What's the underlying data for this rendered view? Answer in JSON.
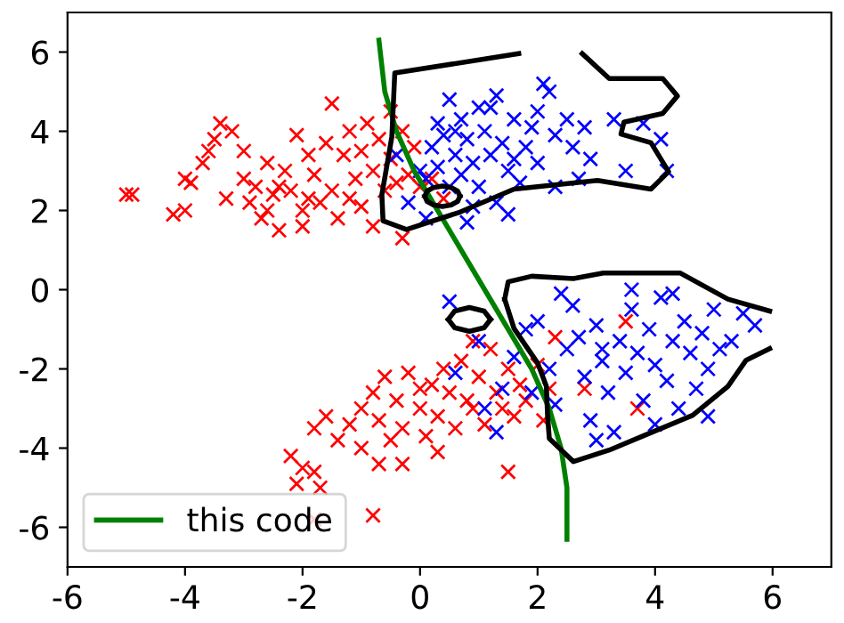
{
  "chart_data": {
    "type": "scatter",
    "xlim": [
      -6,
      7
    ],
    "ylim": [
      -7,
      7
    ],
    "xticks": [
      -6,
      -4,
      -2,
      0,
      2,
      4,
      6
    ],
    "yticks": [
      -6,
      -4,
      -2,
      0,
      2,
      4,
      6
    ],
    "grid": false,
    "legend": "bottom left",
    "marker": "cross",
    "series": [
      {
        "color": "#ff0000",
        "x": [
          -5,
          -4.9,
          -4.2,
          -4.0,
          -4.0,
          -3.9,
          -3.7,
          -3.5,
          -3.4,
          -3.2,
          -3.0,
          -3.0,
          -2.9,
          -2.8,
          -2.7,
          -2.6,
          -2.5,
          -2.4,
          -2.3,
          -2.2,
          -2.1,
          -2.0,
          -2.0,
          -1.9,
          -1.8,
          -1.7,
          -1.6,
          -1.5,
          -1.5,
          -1.4,
          -1.3,
          -1.2,
          -1.1,
          -1.0,
          -1.0,
          -0.9,
          -0.8,
          -0.8,
          -0.7,
          -0.6,
          -0.5,
          -0.5,
          -0.4,
          -0.3,
          -0.2,
          -0.1,
          0.0,
          0.2,
          0.4,
          -2.4,
          -3.3,
          -1.9,
          -2.6,
          -1.2,
          -3.6,
          -0.3,
          -2.2,
          -2.0,
          -1.8,
          -2.1,
          -1.7,
          -1.8,
          -0.8,
          -0.7,
          -1.8,
          -1.6,
          -1.4,
          -1.2,
          -1.0,
          -1.0,
          -0.8,
          -0.7,
          -0.5,
          -0.4,
          -0.3,
          -0.2,
          0.0,
          0.1,
          0.2,
          0.3,
          0.4,
          0.5,
          0.6,
          0.7,
          0.8,
          0.9,
          1.0,
          1.1,
          1.2,
          1.3,
          1.4,
          1.5,
          1.6,
          1.7,
          1.8,
          2.0,
          2.1,
          2.2,
          2.3,
          1.5,
          -0.3,
          0.3,
          2.8,
          3.7,
          3.5,
          0.9,
          -0.6,
          0.0
        ],
        "values": [
          2.4,
          2.4,
          1.9,
          2.0,
          2.8,
          2.7,
          3.2,
          3.8,
          4.2,
          4.0,
          3.5,
          2.8,
          2.2,
          2.6,
          1.8,
          3.2,
          2.4,
          1.5,
          3.0,
          2.5,
          3.9,
          2.0,
          1.6,
          3.4,
          2.9,
          2.2,
          3.7,
          4.7,
          2.5,
          1.8,
          3.4,
          4.0,
          2.8,
          2.1,
          3.5,
          4.2,
          1.6,
          3.0,
          3.8,
          2.5,
          4.5,
          3.3,
          2.7,
          4.0,
          2.9,
          3.6,
          2.6,
          2.8,
          2.3,
          2.6,
          2.3,
          2.3,
          2.0,
          2.3,
          3.5,
          1.3,
          -4.2,
          -4.5,
          -4.6,
          -4.9,
          -5.0,
          -5.8,
          -5.7,
          -4.4,
          -3.5,
          -3.2,
          -3.8,
          -3.4,
          -3.0,
          -4.0,
          -2.6,
          -3.3,
          -3.8,
          -2.8,
          -3.5,
          -2.1,
          -3.0,
          -3.7,
          -2.4,
          -3.2,
          -2.0,
          -2.6,
          -3.5,
          -1.8,
          -2.8,
          -3.0,
          -2.2,
          -3.4,
          -1.5,
          -2.6,
          -3.0,
          -2.0,
          -3.2,
          -2.4,
          -2.8,
          -1.9,
          -3.3,
          -2.5,
          -1.2,
          -4.6,
          -4.4,
          -4.1,
          -2.5,
          -3.0,
          -0.8,
          -1.3,
          -2.2,
          -2.5
        ]
      },
      {
        "color": "#0000ff",
        "x": [
          0.0,
          0.1,
          0.2,
          0.3,
          0.3,
          0.4,
          0.5,
          0.5,
          0.6,
          0.7,
          0.7,
          0.8,
          0.9,
          1.0,
          1.0,
          1.1,
          1.2,
          1.3,
          1.3,
          1.4,
          1.5,
          1.6,
          1.7,
          1.8,
          1.9,
          2.0,
          2.1,
          2.2,
          2.3,
          2.3,
          2.5,
          2.6,
          2.7,
          2.8,
          2.9,
          3.3,
          3.8,
          4.1,
          3.5,
          4.2,
          0.1,
          0.8,
          -0.2,
          1.2,
          0.6,
          1.6,
          2.0,
          -0.4,
          0.9,
          1.5,
          0.5,
          1.0,
          1.1,
          1.4,
          2.0,
          2.2,
          2.3,
          2.6,
          2.7,
          2.8,
          2.9,
          3.0,
          3.1,
          3.2,
          3.3,
          3.4,
          3.5,
          3.6,
          3.7,
          3.8,
          3.9,
          4.0,
          4.1,
          4.2,
          4.3,
          4.4,
          4.5,
          4.6,
          4.7,
          4.8,
          5.0,
          5.1,
          5.3,
          5.5,
          5.7,
          4.9,
          4.9,
          3.0,
          2.5,
          1.8,
          1.9,
          2.4,
          3.6,
          4.0,
          3.1,
          4.3,
          1.6,
          0.6,
          1.3
        ],
        "values": [
          3.0,
          2.8,
          3.6,
          4.2,
          3.1,
          3.9,
          4.8,
          2.6,
          3.4,
          4.3,
          2.9,
          3.8,
          3.2,
          4.6,
          2.6,
          4.0,
          3.4,
          4.9,
          2.2,
          3.7,
          3.0,
          4.3,
          2.7,
          3.6,
          4.1,
          3.2,
          5.2,
          5.0,
          3.9,
          2.6,
          4.3,
          3.6,
          2.8,
          4.1,
          3.3,
          4.3,
          4.2,
          3.8,
          3.0,
          3.0,
          1.8,
          1.7,
          2.2,
          4.6,
          4.0,
          3.3,
          4.5,
          3.4,
          2.1,
          1.9,
          -0.3,
          -1.3,
          -3.0,
          -2.5,
          -0.8,
          -2.0,
          -2.9,
          -0.4,
          -1.2,
          -2.2,
          -3.3,
          -0.9,
          -1.8,
          -2.6,
          -3.6,
          -1.3,
          -2.1,
          -0.5,
          -1.6,
          -2.8,
          -1.0,
          -1.9,
          -0.2,
          -2.3,
          -1.3,
          -3.0,
          -0.8,
          -1.6,
          -2.5,
          -1.1,
          -0.5,
          -1.5,
          -1.3,
          -0.6,
          -0.9,
          -2.0,
          -3.2,
          -3.8,
          -1.5,
          -1.0,
          -2.6,
          -0.1,
          0.0,
          -3.4,
          -1.5,
          -0.1,
          -1.7,
          -2.1,
          -3.6
        ]
      },
      {
        "type": "line",
        "name": "this code",
        "color": "#008000",
        "marker": "none",
        "x": [
          -0.7,
          -0.6,
          -0.4,
          -0.1,
          0.3,
          0.7,
          1.1,
          1.5,
          1.9,
          2.2,
          2.4,
          2.5,
          2.5
        ],
        "values": [
          6.3,
          5,
          4,
          3,
          2,
          1,
          0,
          -1,
          -2,
          -3,
          -4,
          -5,
          -6.3
        ]
      },
      {
        "type": "line",
        "color": "#000000",
        "marker": "none",
        "x": [
          1.68,
          -0.43,
          -0.48,
          -0.65,
          -0.63,
          -0.23,
          0.68,
          1.6,
          3.02,
          3.93,
          4.23,
          3.93,
          3.42,
          3.47,
          4.13,
          4.38,
          4.13,
          3.22,
          2.76
        ],
        "values": [
          5.96,
          5.47,
          3.86,
          2.4,
          1.74,
          1.52,
          1.96,
          2.54,
          2.76,
          2.54,
          2.98,
          3.71,
          3.93,
          4.23,
          4.45,
          4.89,
          5.33,
          5.33,
          5.96
        ]
      },
      {
        "type": "line",
        "color": "#000000",
        "marker": "none",
        "x": [
          0.08,
          0.12,
          0.23,
          0.38,
          0.53,
          0.64,
          0.68
        ],
        "values": [
          2.36,
          2.49,
          2.58,
          2.62,
          2.58,
          2.49,
          2.36
        ]
      },
      {
        "type": "line",
        "color": "#000000",
        "marker": "none",
        "x": [
          0.08,
          0.12,
          0.23,
          0.38,
          0.53,
          0.64,
          0.68
        ],
        "values": [
          2.36,
          2.23,
          2.14,
          2.1,
          2.14,
          2.23,
          2.36
        ]
      },
      {
        "type": "line",
        "color": "#000000",
        "marker": "none",
        "x": [
          1.44,
          1.5,
          1.9,
          2.61,
          3.12,
          4.43,
          5.24,
          5.95
        ],
        "values": [
          -0.24,
          0.2,
          0.34,
          0.28,
          0.42,
          0.42,
          -0.24,
          -0.54
        ]
      },
      {
        "type": "line",
        "color": "#000000",
        "marker": "none",
        "x": [
          1.44,
          1.6,
          2.0,
          2.15,
          2.17,
          2.2,
          2.61,
          3.22,
          3.93,
          4.64,
          5.24,
          5.55,
          5.95
        ],
        "values": [
          -0.24,
          -0.98,
          -1.85,
          -2.44,
          -3.17,
          -3.76,
          -4.34,
          -4.05,
          -3.61,
          -3.17,
          -2.44,
          -1.78,
          -1.49
        ]
      },
      {
        "type": "line",
        "color": "#000000",
        "marker": "none",
        "x": [
          0.48,
          0.59,
          0.84,
          1.09,
          1.2
        ],
        "values": [
          -0.75,
          -0.54,
          -0.45,
          -0.54,
          -0.75
        ]
      },
      {
        "type": "line",
        "color": "#000000",
        "marker": "none",
        "x": [
          0.48,
          0.59,
          0.84,
          1.09,
          1.2
        ],
        "values": [
          -0.75,
          -0.96,
          -1.05,
          -0.96,
          -0.75
        ]
      }
    ]
  }
}
